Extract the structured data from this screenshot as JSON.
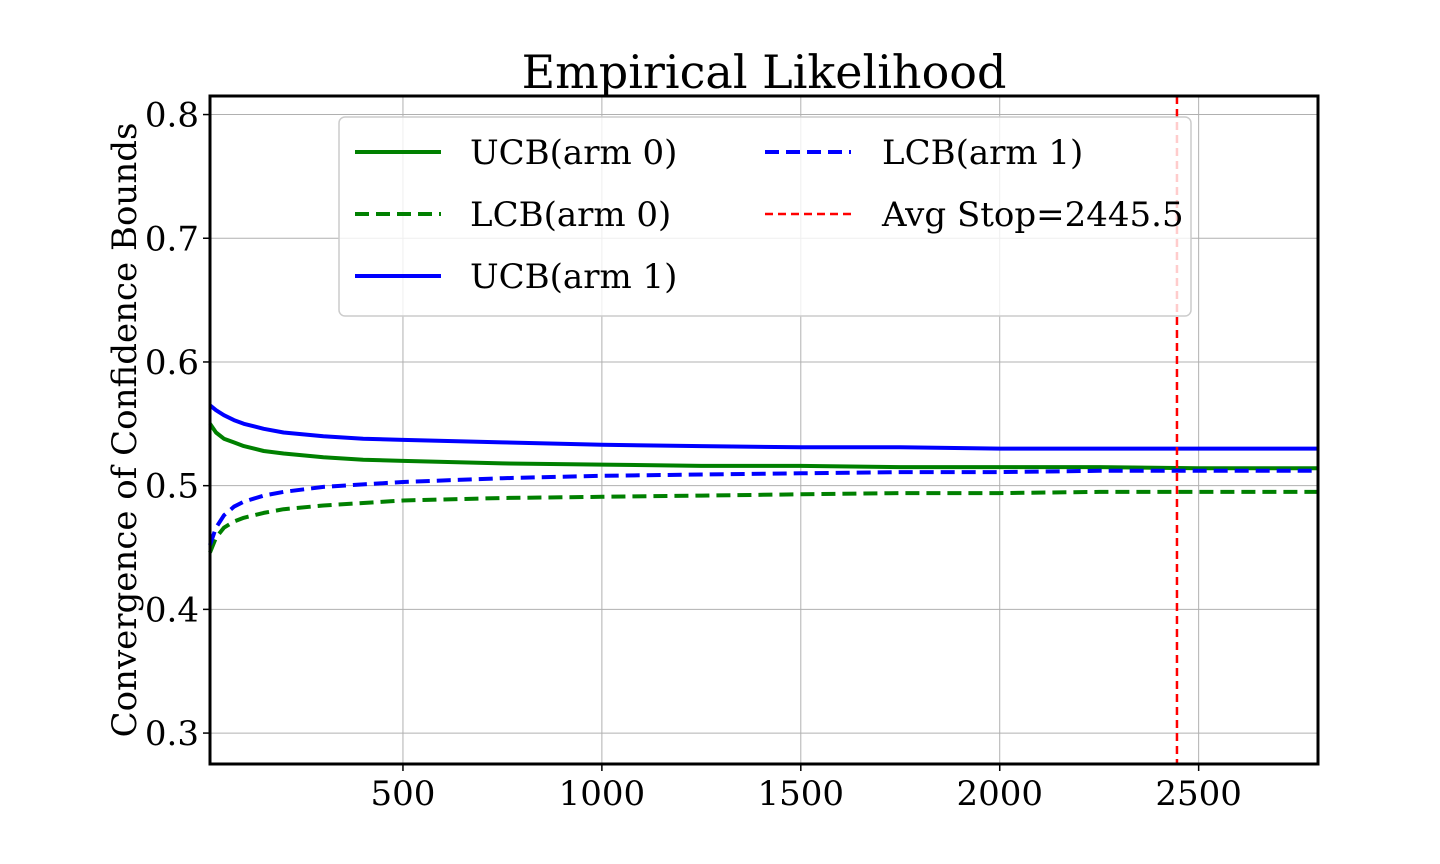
{
  "chart_data": {
    "type": "line",
    "title": "Empirical Likelihood",
    "xlabel": "",
    "ylabel": "Convergence of Confidence Bounds",
    "xlim": [
      15,
      2800
    ],
    "ylim": [
      0.275,
      0.815
    ],
    "xticks": [
      500,
      1000,
      1500,
      2000,
      2500
    ],
    "xtick_labels": [
      "500",
      "1000",
      "1500",
      "2000",
      "2500"
    ],
    "yticks": [
      0.3,
      0.4,
      0.5,
      0.6,
      0.7,
      0.8
    ],
    "ytick_labels": [
      "0.3",
      "0.4",
      "0.5",
      "0.6",
      "0.7",
      "0.8"
    ],
    "grid": true,
    "legend_position": "top-center",
    "x": [
      15,
      30,
      50,
      75,
      100,
      150,
      200,
      300,
      400,
      500,
      750,
      1000,
      1250,
      1500,
      1750,
      2000,
      2250,
      2500,
      2800
    ],
    "series": [
      {
        "name": "UCB(arm 0)",
        "color": "#008000",
        "style": "solid",
        "values": [
          0.55,
          0.543,
          0.538,
          0.535,
          0.532,
          0.528,
          0.526,
          0.523,
          0.521,
          0.52,
          0.518,
          0.517,
          0.516,
          0.516,
          0.515,
          0.515,
          0.515,
          0.514,
          0.514
        ]
      },
      {
        "name": "LCB(arm 0)",
        "color": "#008000",
        "style": "dashed",
        "values": [
          0.446,
          0.458,
          0.466,
          0.471,
          0.474,
          0.478,
          0.481,
          0.484,
          0.486,
          0.488,
          0.49,
          0.491,
          0.492,
          0.493,
          0.494,
          0.494,
          0.495,
          0.495,
          0.495
        ]
      },
      {
        "name": "UCB(arm 1)",
        "color": "#0000ff",
        "style": "solid",
        "values": [
          0.565,
          0.561,
          0.557,
          0.553,
          0.55,
          0.546,
          0.543,
          0.54,
          0.538,
          0.537,
          0.535,
          0.533,
          0.532,
          0.531,
          0.531,
          0.53,
          0.53,
          0.53,
          0.53
        ]
      },
      {
        "name": "LCB(arm 1)",
        "color": "#0000ff",
        "style": "dashed",
        "values": [
          0.452,
          0.466,
          0.476,
          0.483,
          0.487,
          0.492,
          0.495,
          0.499,
          0.501,
          0.503,
          0.506,
          0.508,
          0.509,
          0.51,
          0.511,
          0.511,
          0.512,
          0.512,
          0.512
        ]
      }
    ],
    "annotations": [
      {
        "name": "Avg Stop=2445.5",
        "type": "vline",
        "x": 2445.5,
        "color": "#ff0000",
        "style": "dashed"
      }
    ]
  }
}
